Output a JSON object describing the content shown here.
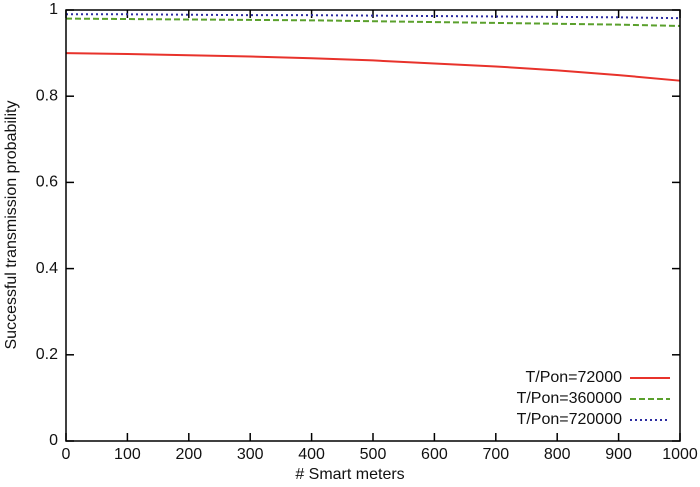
{
  "chart_data": {
    "type": "line",
    "xlabel": "# Smart meters",
    "ylabel": "Successful transmission probability",
    "x": [
      0,
      100,
      200,
      300,
      400,
      500,
      600,
      700,
      800,
      900,
      1000
    ],
    "series": [
      {
        "name": "T/Pon=72000",
        "color": "#e8322b",
        "style": "solid",
        "values": [
          0.9,
          0.898,
          0.895,
          0.892,
          0.888,
          0.883,
          0.876,
          0.869,
          0.86,
          0.849,
          0.836
        ]
      },
      {
        "name": "T/Pon=360000",
        "color": "#5aa02c",
        "style": "dashed",
        "values": [
          0.98,
          0.979,
          0.978,
          0.977,
          0.976,
          0.974,
          0.972,
          0.97,
          0.968,
          0.966,
          0.963
        ]
      },
      {
        "name": "T/Pon=720000",
        "color": "#2b2ba0",
        "style": "dotted",
        "values": [
          0.99,
          0.99,
          0.989,
          0.988,
          0.988,
          0.987,
          0.986,
          0.985,
          0.984,
          0.983,
          0.981
        ]
      }
    ],
    "xlim": [
      0,
      1000
    ],
    "xticks": [
      0,
      100,
      200,
      300,
      400,
      500,
      600,
      700,
      800,
      900,
      1000
    ],
    "ylim": [
      0,
      1
    ],
    "yticks": [
      0,
      0.2,
      0.4,
      0.6,
      0.8,
      1
    ],
    "grid": false,
    "legend": "lower right"
  }
}
